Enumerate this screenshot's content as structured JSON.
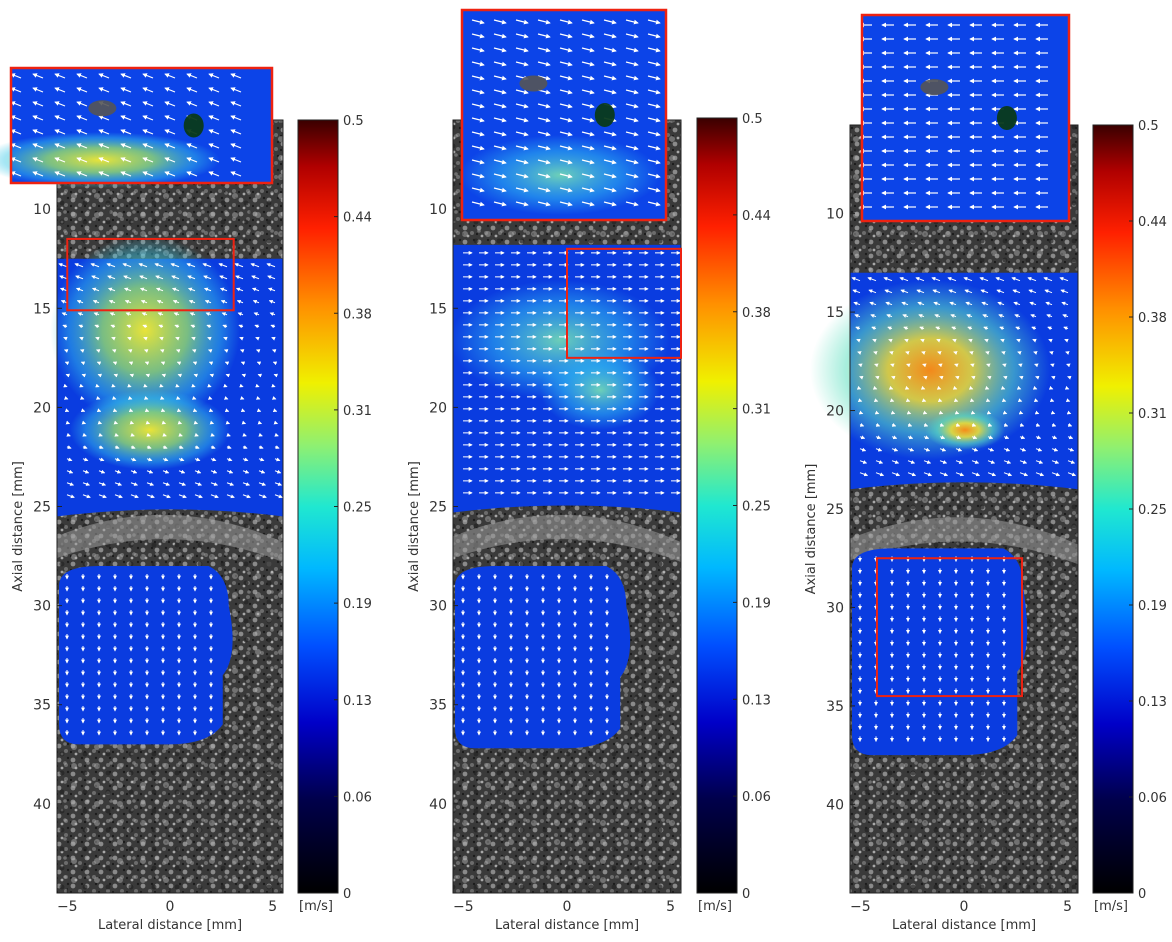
{
  "chart_data": [
    {
      "type": "heatmap",
      "panel": "left",
      "xlabel": "Lateral distance [mm]",
      "ylabel": "Axial distance [mm]",
      "xlim": [
        -5.5,
        5.5
      ],
      "ylim": [
        44.5,
        5.5
      ],
      "x_ticks": [
        -5,
        0,
        5
      ],
      "y_ticks": [
        10,
        15,
        20,
        25,
        30,
        35,
        40
      ],
      "colorbar": {
        "min": 0,
        "max": 0.5,
        "ticks": [
          "0",
          "0.06",
          "0.13",
          "0.19",
          "0.25",
          "0.31",
          "0.38",
          "0.44",
          "0.5"
        ],
        "unit": "[m/s]"
      },
      "regions": [
        {
          "y_top": 12.5,
          "y_bottom": 25.5,
          "peak_speed": 0.3
        },
        {
          "y_top": 28.0,
          "y_bottom": 37.0,
          "peak_speed": 0.08
        }
      ],
      "zoom_box": {
        "x": [
          -5,
          3.1
        ],
        "y": [
          11.5,
          15.1
        ]
      }
    },
    {
      "type": "heatmap",
      "panel": "middle",
      "xlabel": "Lateral distance [mm]",
      "ylabel": "Axial distance [mm]",
      "xlim": [
        -5.5,
        5.5
      ],
      "ylim": [
        44.5,
        5.5
      ],
      "x_ticks": [
        -5,
        0,
        5
      ],
      "y_ticks": [
        10,
        15,
        20,
        25,
        30,
        35,
        40
      ],
      "colorbar": {
        "min": 0,
        "max": 0.5,
        "ticks": [
          "0",
          "0.06",
          "0.13",
          "0.19",
          "0.25",
          "0.31",
          "0.38",
          "0.44",
          "0.5"
        ],
        "unit": "[m/s]"
      },
      "regions": [
        {
          "y_top": 11.8,
          "y_bottom": 25.3,
          "peak_speed": 0.22
        },
        {
          "y_top": 28.0,
          "y_bottom": 37.2,
          "peak_speed": 0.08
        }
      ],
      "zoom_box": {
        "x": [
          0,
          5.5
        ],
        "y": [
          12.0,
          17.5
        ]
      }
    },
    {
      "type": "heatmap",
      "panel": "right",
      "xlabel": "Lateral distance [mm]",
      "ylabel": "Axial distance [mm]",
      "xlim": [
        -5.5,
        5.5
      ],
      "ylim": [
        44.5,
        5.5
      ],
      "x_ticks": [
        -5,
        0,
        5
      ],
      "y_ticks": [
        10,
        15,
        20,
        25,
        30,
        35,
        40
      ],
      "colorbar": {
        "min": 0,
        "max": 0.5,
        "ticks": [
          "0",
          "0.06",
          "0.13",
          "0.19",
          "0.25",
          "0.31",
          "0.38",
          "0.44",
          "0.5"
        ],
        "unit": "[m/s]"
      },
      "regions": [
        {
          "y_top": 13.0,
          "y_bottom": 24.0,
          "peak_speed": 0.4
        },
        {
          "y_top": 27.0,
          "y_bottom": 37.5,
          "peak_speed": 0.1
        }
      ],
      "zoom_box": {
        "x": [
          -4.2,
          2.8
        ],
        "y": [
          27.5,
          34.5
        ]
      }
    }
  ]
}
